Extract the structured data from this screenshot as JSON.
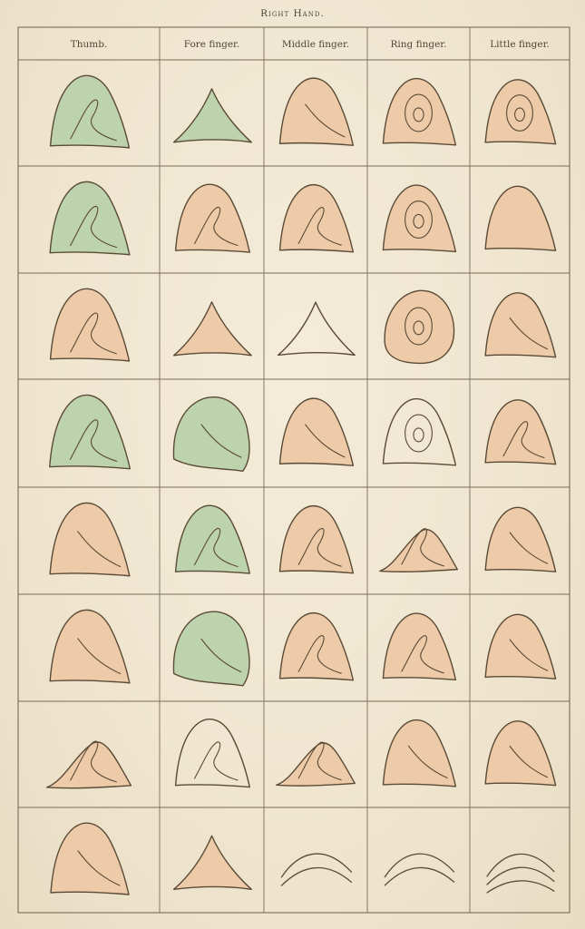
{
  "title": "Right Hand.",
  "columns": [
    "Thumb.",
    "Fore finger.",
    "Middle finger.",
    "Ring finger.",
    "Little finger."
  ],
  "colors": {
    "paper": "#f1e8d3",
    "ink": "#5a4a36",
    "flesh": "#eecba8",
    "green": "#bdd3ad",
    "grid": "#7a6c58"
  },
  "rows": [
    [
      "green-loop",
      "green-tent",
      "flesh-plain",
      "flesh-whorl",
      "flesh-whorl"
    ],
    [
      "green-double",
      "flesh-loop",
      "flesh-loop",
      "flesh-whorl",
      "flesh-small"
    ],
    [
      "flesh-loop",
      "flesh-tent",
      "outline-tent",
      "flesh-whorl-round",
      "flesh-plain"
    ],
    [
      "green-double-open",
      "green-dome",
      "flesh-plain",
      "outline-whorl",
      "flesh-loop-nested"
    ],
    [
      "flesh-plain",
      "green-loop-small",
      "flesh-loop",
      "flesh-loop-low",
      "flesh-plain"
    ],
    [
      "flesh-plain",
      "green-dome",
      "flesh-loop",
      "flesh-loop",
      "flesh-plain"
    ],
    [
      "flesh-loop-low",
      "outline-loop",
      "flesh-loop-low",
      "flesh-plain",
      "flesh-plain"
    ],
    [
      "flesh-plain",
      "flesh-tent-small",
      "outline-arch",
      "outline-arch",
      "outline-arch-lines"
    ]
  ]
}
